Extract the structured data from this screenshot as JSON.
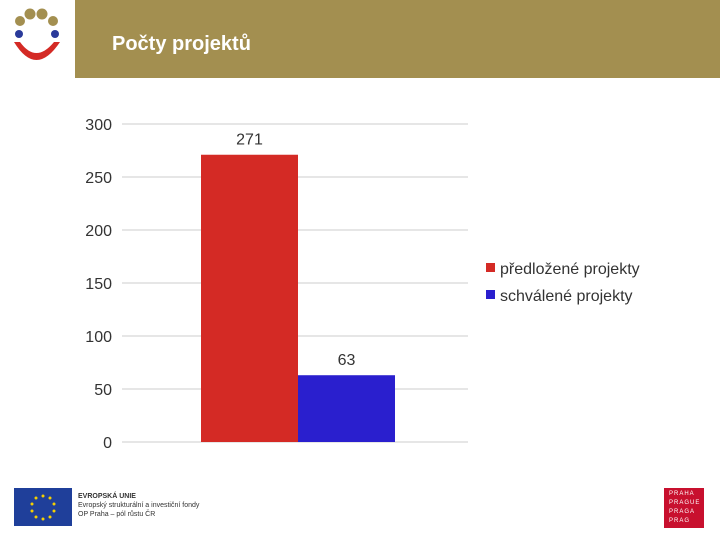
{
  "header": {
    "title": "Počty projektů",
    "bar_color": "#a38f50"
  },
  "footer": {
    "eu_lines": [
      "EVROPSKÁ UNIE",
      "Evropský strukturální a investiční fondy",
      "OP Praha – pól růstu ČR"
    ],
    "praha_lines": [
      "PRAHA",
      "PRAGUE",
      "PRAGA",
      "PRAG"
    ]
  },
  "chart_data": {
    "type": "bar",
    "categories": [
      ""
    ],
    "series": [
      {
        "name": "předložené projekty",
        "values": [
          271
        ],
        "color": "#d42a25"
      },
      {
        "name": "schválené projekty",
        "values": [
          63
        ],
        "color": "#2a1fce"
      }
    ],
    "ylim": [
      0,
      300
    ],
    "yticks": [
      0,
      50,
      100,
      150,
      200,
      250,
      300
    ],
    "grid": true,
    "legend_position": "right",
    "data_labels": true
  }
}
